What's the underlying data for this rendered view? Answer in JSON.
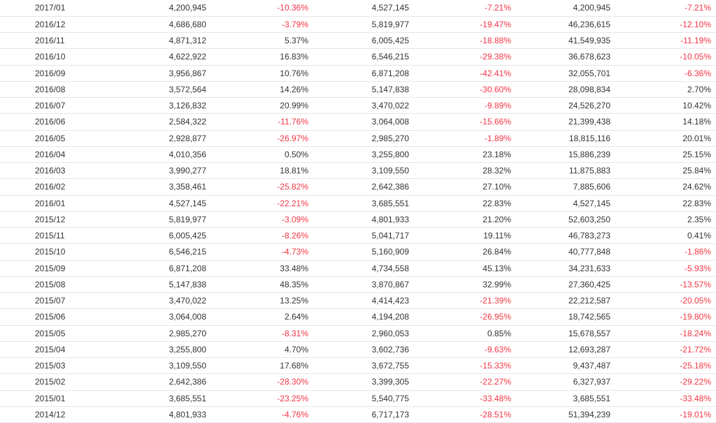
{
  "colors": {
    "negative": "#f23645",
    "text": "#333333",
    "row_border": "#e6e6e6"
  },
  "rows": [
    [
      "2017/01",
      "4,200,945",
      "-10.36%",
      "4,527,145",
      "-7.21%",
      "4,200,945",
      "-7.21%"
    ],
    [
      "2016/12",
      "4,686,680",
      "-3.79%",
      "5,819,977",
      "-19.47%",
      "46,236,615",
      "-12.10%"
    ],
    [
      "2016/11",
      "4,871,312",
      "5.37%",
      "6,005,425",
      "-18.88%",
      "41,549,935",
      "-11.19%"
    ],
    [
      "2016/10",
      "4,622,922",
      "16.83%",
      "6,546,215",
      "-29.38%",
      "36,678,623",
      "-10.05%"
    ],
    [
      "2016/09",
      "3,956,867",
      "10.76%",
      "6,871,208",
      "-42.41%",
      "32,055,701",
      "-6.36%"
    ],
    [
      "2016/08",
      "3,572,564",
      "14.26%",
      "5,147,838",
      "-30.60%",
      "28,098,834",
      "2.70%"
    ],
    [
      "2016/07",
      "3,126,832",
      "20.99%",
      "3,470,022",
      "-9.89%",
      "24,526,270",
      "10.42%"
    ],
    [
      "2016/06",
      "2,584,322",
      "-11.76%",
      "3,064,008",
      "-15.66%",
      "21,399,438",
      "14.18%"
    ],
    [
      "2016/05",
      "2,928,877",
      "-26.97%",
      "2,985,270",
      "-1.89%",
      "18,815,116",
      "20.01%"
    ],
    [
      "2016/04",
      "4,010,356",
      "0.50%",
      "3,255,800",
      "23.18%",
      "15,886,239",
      "25.15%"
    ],
    [
      "2016/03",
      "3,990,277",
      "18.81%",
      "3,109,550",
      "28.32%",
      "11,875,883",
      "25.84%"
    ],
    [
      "2016/02",
      "3,358,461",
      "-25.82%",
      "2,642,386",
      "27.10%",
      "7,885,606",
      "24.62%"
    ],
    [
      "2016/01",
      "4,527,145",
      "-22.21%",
      "3,685,551",
      "22.83%",
      "4,527,145",
      "22.83%"
    ],
    [
      "2015/12",
      "5,819,977",
      "-3.09%",
      "4,801,933",
      "21.20%",
      "52,603,250",
      "2.35%"
    ],
    [
      "2015/11",
      "6,005,425",
      "-8.26%",
      "5,041,717",
      "19.11%",
      "46,783,273",
      "0.41%"
    ],
    [
      "2015/10",
      "6,546,215",
      "-4.73%",
      "5,160,909",
      "26.84%",
      "40,777,848",
      "-1.86%"
    ],
    [
      "2015/09",
      "6,871,208",
      "33.48%",
      "4,734,558",
      "45.13%",
      "34,231,633",
      "-5.93%"
    ],
    [
      "2015/08",
      "5,147,838",
      "48.35%",
      "3,870,867",
      "32.99%",
      "27,360,425",
      "-13.57%"
    ],
    [
      "2015/07",
      "3,470,022",
      "13.25%",
      "4,414,423",
      "-21.39%",
      "22,212,587",
      "-20.05%"
    ],
    [
      "2015/06",
      "3,064,008",
      "2.64%",
      "4,194,208",
      "-26.95%",
      "18,742,565",
      "-19.80%"
    ],
    [
      "2015/05",
      "2,985,270",
      "-8.31%",
      "2,960,053",
      "0.85%",
      "15,678,557",
      "-18.24%"
    ],
    [
      "2015/04",
      "3,255,800",
      "4.70%",
      "3,602,736",
      "-9.63%",
      "12,693,287",
      "-21.72%"
    ],
    [
      "2015/03",
      "3,109,550",
      "17.68%",
      "3,672,755",
      "-15.33%",
      "9,437,487",
      "-25.18%"
    ],
    [
      "2015/02",
      "2,642,386",
      "-28.30%",
      "3,399,305",
      "-22.27%",
      "6,327,937",
      "-29.22%"
    ],
    [
      "2015/01",
      "3,685,551",
      "-23.25%",
      "5,540,775",
      "-33.48%",
      "3,685,551",
      "-33.48%"
    ],
    [
      "2014/12",
      "4,801,933",
      "-4.76%",
      "6,717,173",
      "-28.51%",
      "51,394,239",
      "-19.01%"
    ]
  ]
}
